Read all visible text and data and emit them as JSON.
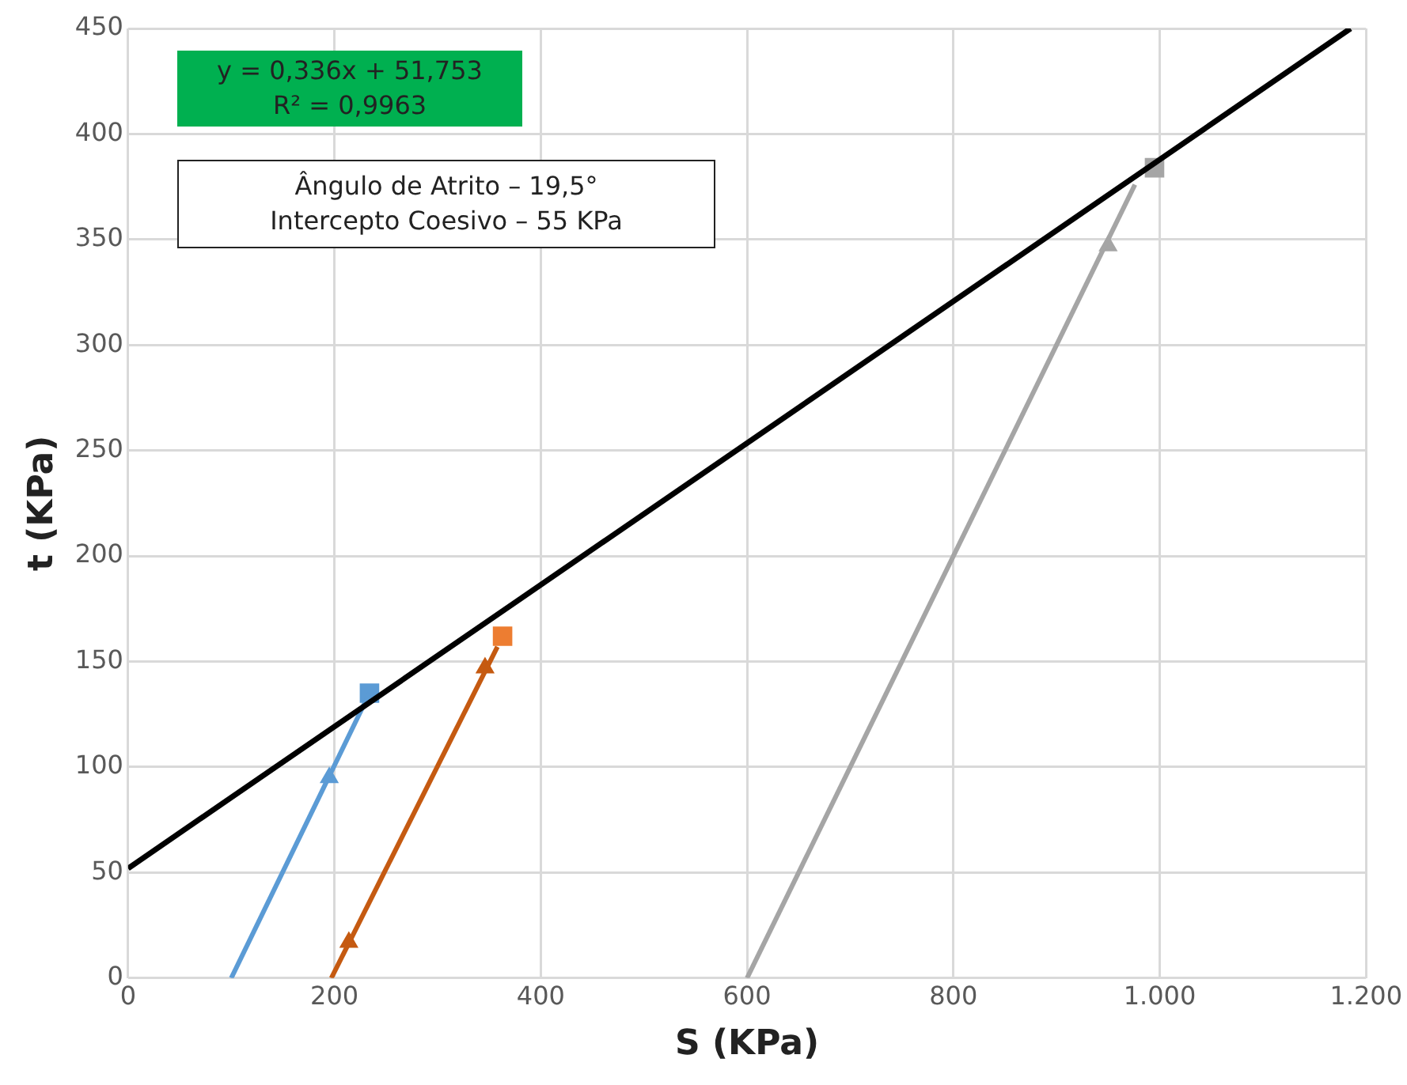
{
  "chart_data": {
    "type": "line",
    "xlabel": "S (KPa)",
    "ylabel": "t (KPa)",
    "xlim": [
      0,
      1200
    ],
    "xticks": [
      0,
      200,
      400,
      600,
      800,
      {
        "value": 1000,
        "label": "1.000"
      },
      {
        "value": 1200,
        "label": "1.200"
      }
    ],
    "ylim": [
      0,
      450
    ],
    "yticks": [
      0,
      50,
      100,
      150,
      200,
      250,
      300,
      350,
      400,
      450
    ],
    "grid": true,
    "legend": false,
    "annotations": [
      "y = 0,336x + 51,753\nR² = 0,9963",
      "Ângulo de Atrito – 19,5°\nIntercepto Coesivo – 55 KPa"
    ],
    "series": [
      {
        "type": "line",
        "color": "#000000",
        "marker": "none",
        "x": [
          0,
          1185
        ],
        "values": [
          52,
          450
        ]
      },
      {
        "type": "line",
        "color": "#5b9bd5",
        "marker": "none",
        "x": [
          100,
          234
        ],
        "values": [
          0,
          135
        ]
      },
      {
        "type": "line",
        "color": "#c55a11",
        "marker": "none",
        "x": [
          197,
          358
        ],
        "values": [
          0,
          157
        ]
      },
      {
        "type": "line",
        "color": "#a5a5a5",
        "marker": "none",
        "x": [
          600,
          976
        ],
        "values": [
          0,
          376
        ]
      },
      {
        "type": "scatter",
        "color": "#5b9bd5",
        "marker": "triangle",
        "x": [
          195
        ],
        "values": [
          95
        ]
      },
      {
        "type": "scatter",
        "color": "#c55a11",
        "marker": "triangle",
        "x": [
          214,
          346
        ],
        "values": [
          17,
          147
        ]
      },
      {
        "type": "scatter",
        "color": "#a5a5a5",
        "marker": "triangle",
        "x": [
          950
        ],
        "values": [
          347
        ]
      },
      {
        "type": "scatter",
        "color": "#5b9bd5",
        "marker": "square",
        "x": [
          234
        ],
        "values": [
          135
        ]
      },
      {
        "type": "scatter",
        "color": "#ed7d31",
        "marker": "square",
        "x": [
          363
        ],
        "values": [
          162
        ]
      },
      {
        "type": "scatter",
        "color": "#a5a5a5",
        "marker": "square",
        "x": [
          995
        ],
        "values": [
          384
        ]
      }
    ]
  }
}
